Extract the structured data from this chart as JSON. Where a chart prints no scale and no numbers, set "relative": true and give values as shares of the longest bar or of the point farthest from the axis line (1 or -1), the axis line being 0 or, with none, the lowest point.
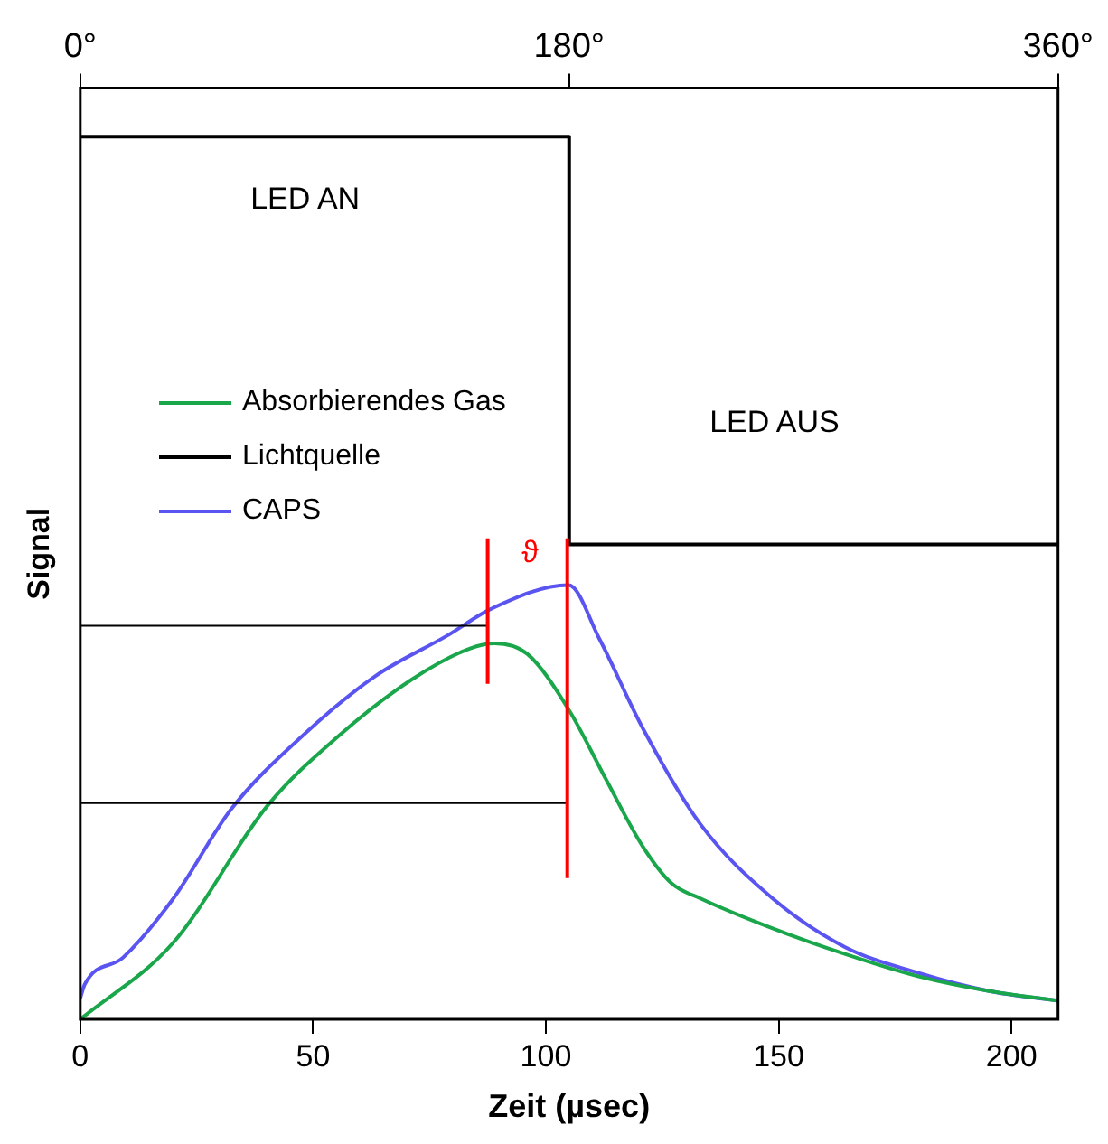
{
  "chart_data": {
    "type": "line",
    "relative": true,
    "xlabel": "Zeit (µsec)",
    "ylabel": "Signal",
    "xlim": [
      0,
      210
    ],
    "xticks": [
      0,
      50,
      100,
      150,
      200
    ],
    "x2lim": [
      0,
      360
    ],
    "x2ticks": [
      {
        "value": 0,
        "label": "0°"
      },
      {
        "value": 180,
        "label": "180°"
      },
      {
        "value": 360,
        "label": "360°"
      }
    ],
    "legend": "left",
    "marker": "none",
    "line_style": "solid",
    "series": [
      {
        "name": "Absorbierendes Gas",
        "color": "#1aa64a",
        "x": [
          0,
          20,
          40.2,
          55.7,
          71.2,
          83.6,
          89,
          96,
          104.9,
          113,
          120.8,
          127,
          133.2,
          148.7,
          164.2,
          179.7,
          195.2,
          210
        ],
        "values": [
          0,
          0.087,
          0.242,
          0.322,
          0.385,
          0.42,
          0.426,
          0.414,
          0.351,
          0.271,
          0.196,
          0.154,
          0.137,
          0.103,
          0.074,
          0.049,
          0.032,
          0.021
        ]
      },
      {
        "name": "Lichtquelle",
        "color": "#000000",
        "x": [
          0,
          105,
          105,
          210
        ],
        "values": [
          1,
          1,
          0.538,
          0.538
        ]
      },
      {
        "name": "CAPS",
        "color": "#5a55f0",
        "x": [
          0,
          1,
          9.2,
          20,
          32.4,
          47.9,
          63.4,
          78.9,
          88.2,
          104.9,
          111.5,
          120.8,
          133.2,
          148.7,
          164.2,
          179.7,
          195.2,
          210
        ],
        "values": [
          0.024,
          0.04,
          0.07,
          0.137,
          0.238,
          0.322,
          0.389,
          0.435,
          0.465,
          0.492,
          0.431,
          0.33,
          0.221,
          0.137,
          0.082,
          0.053,
          0.032,
          0.021
        ]
      }
    ],
    "ref_lines": [
      {
        "axis": "x",
        "value": 87.5,
        "color": "#ff0000"
      },
      {
        "axis": "x",
        "value": 104.6,
        "color": "#ff0000"
      },
      {
        "axis": "y",
        "value": 0.446,
        "color": "#000000"
      },
      {
        "axis": "y",
        "value": 0.245,
        "color": "#000000"
      }
    ],
    "annotations": [
      "LED AN",
      "LED AUS",
      "ϑ"
    ]
  }
}
